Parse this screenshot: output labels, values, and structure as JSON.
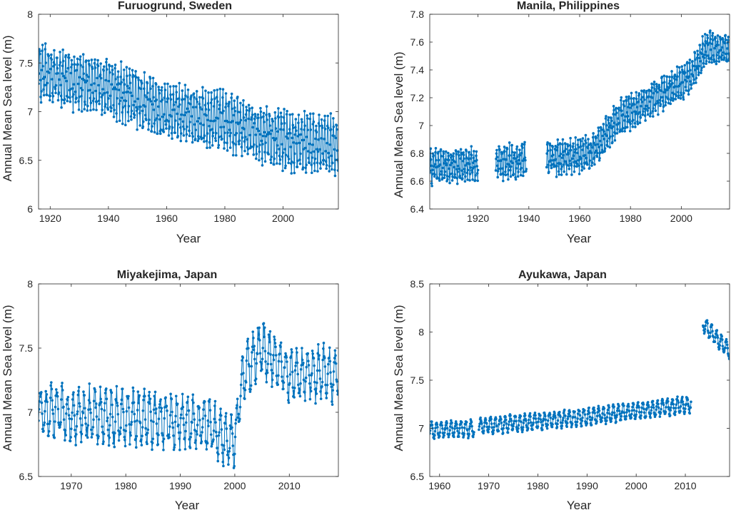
{
  "colors": {
    "series": "#0072BD",
    "axis": "#262626"
  },
  "chart_data": [
    {
      "type": "line",
      "title": "Furuogrund, Sweden",
      "xlabel": "Year",
      "ylabel": "Annual Mean Sea level (m)",
      "xlim": [
        1916,
        2019
      ],
      "ylim": [
        6,
        8
      ],
      "xticks": [
        1920,
        1940,
        1960,
        1980,
        2000
      ],
      "yticks": [
        6,
        6.5,
        7,
        7.5,
        8
      ],
      "grid": false,
      "series": [
        {
          "marker": "dot",
          "start": 1916,
          "end": 2019,
          "step": 0.125,
          "segments": [
            [
              1916,
              2019
            ]
          ],
          "trend": [
            [
              1916,
              7.4
            ],
            [
              1945,
              7.2
            ],
            [
              1960,
              7.0
            ],
            [
              1980,
              6.9
            ],
            [
              2000,
              6.7
            ],
            [
              2019,
              6.65
            ]
          ],
          "amplitude": 0.25,
          "noise": 0.08
        }
      ]
    },
    {
      "type": "line",
      "title": "Manila, Philippines",
      "xlabel": "Year",
      "ylabel": "Annual Mean Sea level (m)",
      "xlim": [
        1901,
        2019
      ],
      "ylim": [
        6.4,
        7.8
      ],
      "xticks": [
        1920,
        1940,
        1960,
        1980,
        2000
      ],
      "yticks": [
        6.4,
        6.6,
        6.8,
        7,
        7.2,
        7.4,
        7.6,
        7.8
      ],
      "grid": false,
      "series": [
        {
          "marker": "dot",
          "start": 1901,
          "end": 2019,
          "step": 0.125,
          "segments": [
            [
              1901,
              1920
            ],
            [
              1927,
              1939
            ],
            [
              1947,
              2019
            ]
          ],
          "trend": [
            [
              1901,
              6.7
            ],
            [
              1920,
              6.72
            ],
            [
              1927,
              6.73
            ],
            [
              1939,
              6.75
            ],
            [
              1947,
              6.76
            ],
            [
              1965,
              6.8
            ],
            [
              1975,
              7.05
            ],
            [
              1990,
              7.2
            ],
            [
              2003,
              7.35
            ],
            [
              2010,
              7.55
            ],
            [
              2019,
              7.55
            ]
          ],
          "amplitude": 0.1,
          "noise": 0.04
        }
      ]
    },
    {
      "type": "line",
      "title": "Miyakejima, Japan",
      "xlabel": "Year",
      "ylabel": "Annual Mean Sea level (m)",
      "xlim": [
        1964,
        2019
      ],
      "ylim": [
        6.5,
        8
      ],
      "xticks": [
        1970,
        1980,
        1990,
        2000,
        2010
      ],
      "yticks": [
        6.5,
        7,
        7.5,
        8
      ],
      "grid": false,
      "series": [
        {
          "marker": "dot",
          "start": 1964,
          "end": 2019,
          "step": 0.0833,
          "segments": [
            [
              1964,
              2019
            ]
          ],
          "trend": [
            [
              1964,
              7.0
            ],
            [
              1985,
              6.95
            ],
            [
              1995,
              6.9
            ],
            [
              2000,
              6.75
            ],
            [
              2001.5,
              7.3
            ],
            [
              2005,
              7.5
            ],
            [
              2010,
              7.3
            ],
            [
              2019,
              7.3
            ]
          ],
          "amplitude": 0.18,
          "noise": 0.07
        }
      ]
    },
    {
      "type": "line",
      "title": "Ayukawa, Japan",
      "xlabel": "Year",
      "ylabel": "Annual Mean Sea level (m)",
      "xlim": [
        1958,
        2019
      ],
      "ylim": [
        6.5,
        8.5
      ],
      "xticks": [
        1960,
        1970,
        1980,
        1990,
        2000,
        2010
      ],
      "yticks": [
        6.5,
        7,
        7.5,
        8,
        8.5
      ],
      "grid": false,
      "series": [
        {
          "marker": "dot",
          "start": 1958,
          "end": 2019,
          "step": 0.0833,
          "segments": [
            [
              1958,
              1967
            ],
            [
              1968,
              2011.2
            ],
            [
              2013.6,
              2019
            ]
          ],
          "trend": [
            [
              1958,
              6.98
            ],
            [
              1967,
              7.0
            ],
            [
              1968,
              7.02
            ],
            [
              1990,
              7.12
            ],
            [
              2011,
              7.25
            ],
            [
              2011.2,
              7.25
            ],
            [
              2013.6,
              8.08
            ],
            [
              2019,
              7.8
            ]
          ],
          "amplitude": 0.08,
          "noise": 0.02
        }
      ]
    }
  ]
}
